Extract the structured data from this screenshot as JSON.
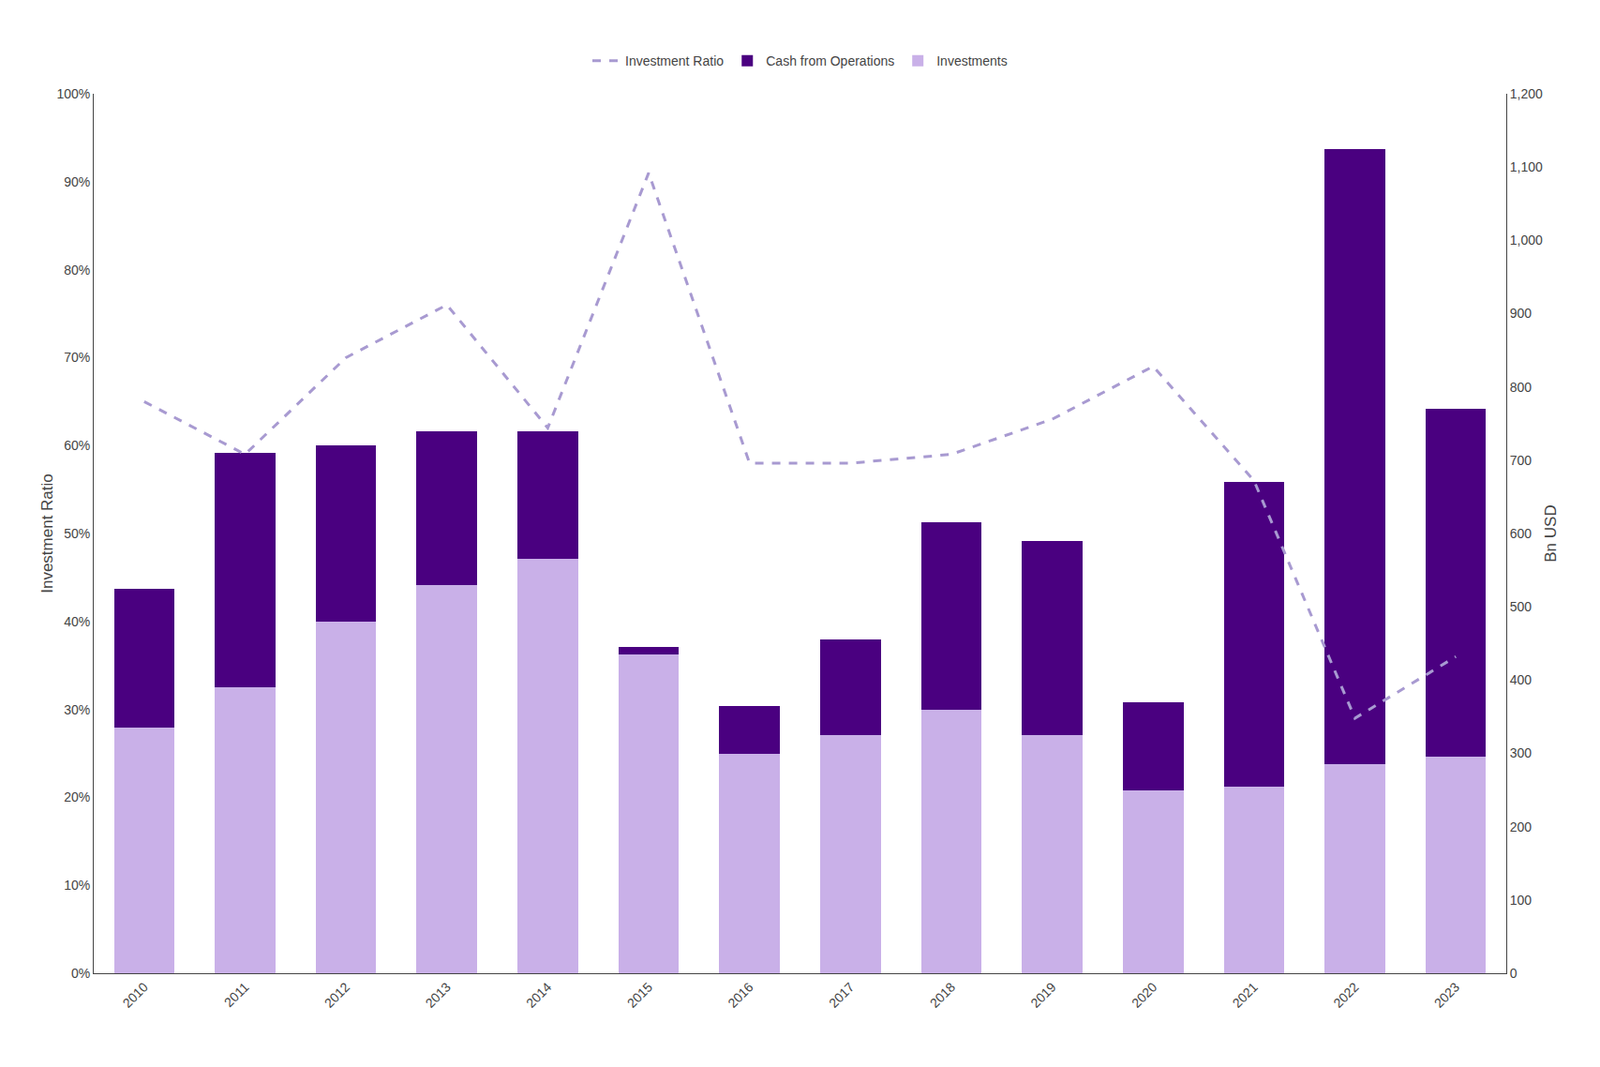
{
  "chart_data": {
    "type": "bar",
    "stacked": true,
    "grid": false,
    "legend": "top",
    "ylabel": "Bn USD",
    "y2label": "Investment Ratio",
    "categories": [
      "2010",
      "2011",
      "2012",
      "2013",
      "2014",
      "2015",
      "2016",
      "2017",
      "2018",
      "2019",
      "2020",
      "2021",
      "2022",
      "2023"
    ],
    "ylim": [
      0,
      1200
    ],
    "yticks": [
      0,
      100,
      200,
      300,
      400,
      500,
      600,
      700,
      800,
      900,
      {
        "value": 1000,
        "label": "1,000"
      },
      {
        "value": 1100,
        "label": "1,100"
      },
      {
        "value": 1200,
        "label": "1,200"
      }
    ],
    "y2lim": [
      0,
      100
    ],
    "y2ticks": [
      {
        "value": 0,
        "label": "0%"
      },
      {
        "value": 10,
        "label": "10%"
      },
      {
        "value": 20,
        "label": "20%"
      },
      {
        "value": 30,
        "label": "30%"
      },
      {
        "value": 40,
        "label": "40%"
      },
      {
        "value": 50,
        "label": "50%"
      },
      {
        "value": 60,
        "label": "60%"
      },
      {
        "value": 70,
        "label": "70%"
      },
      {
        "value": 80,
        "label": "80%"
      },
      {
        "value": 90,
        "label": "90%"
      },
      {
        "value": 100,
        "label": "100%"
      }
    ],
    "series": [
      {
        "name": "Investments",
        "type": "bar",
        "color": "#c9b0e8",
        "values": [
          335,
          390,
          480,
          530,
          565,
          435,
          300,
          325,
          360,
          325,
          250,
          255,
          285,
          295
        ]
      },
      {
        "name": "Cash from Operations",
        "type": "bar",
        "color": "#4a0080",
        "values": [
          190,
          320,
          240,
          210,
          175,
          10,
          65,
          130,
          255,
          265,
          120,
          415,
          840,
          475
        ]
      },
      {
        "name": "Investment Ratio",
        "type": "line",
        "color": "#a89ad1",
        "line_style": "dashed",
        "axis": "y2",
        "values": [
          65,
          59,
          70,
          76,
          62,
          91,
          58,
          58,
          59,
          63,
          69,
          56,
          29,
          36
        ]
      }
    ]
  }
}
